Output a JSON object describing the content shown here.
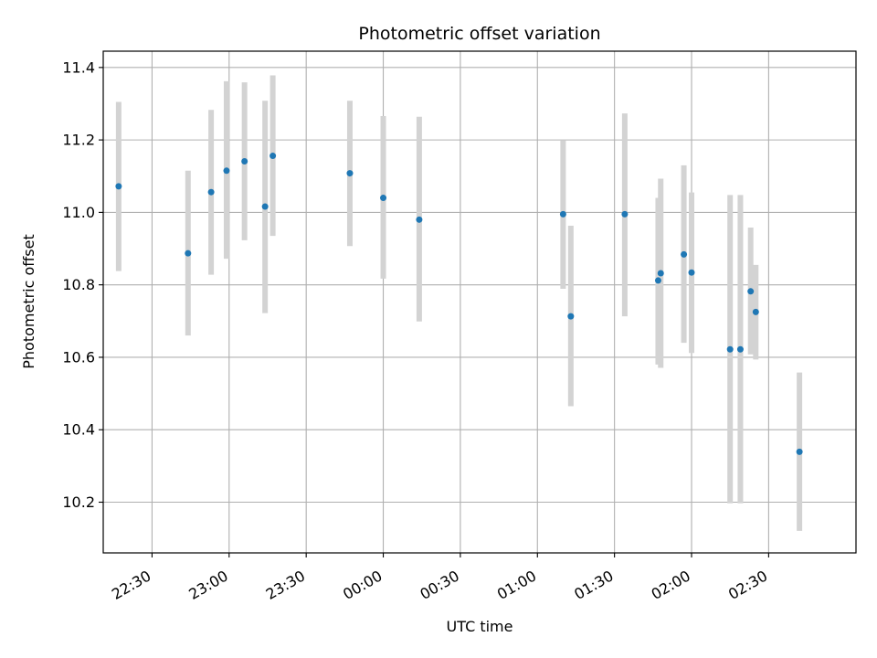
{
  "chart_data": {
    "type": "scatter",
    "title": "Photometric offset variation",
    "xlabel": "UTC time",
    "ylabel": "Photometric offset",
    "grid": true,
    "colors": {
      "point": "#1f77b4",
      "errorbar": "#d3d3d3",
      "grid": "#b0b0b0"
    },
    "xlim": [
      "22:11",
      "03:04"
    ],
    "ylim": [
      10.06,
      11.445
    ],
    "x_ticks": [
      "22:30",
      "23:00",
      "23:30",
      "00:00",
      "00:30",
      "01:00",
      "01:30",
      "02:00",
      "02:30"
    ],
    "y_ticks": [
      "10.2",
      "10.4",
      "10.6",
      "10.8",
      "11.0",
      "11.2",
      "11.4"
    ],
    "series": [
      {
        "points": [
          {
            "x": "22:17",
            "y": 11.072,
            "ylow": 10.838,
            "yhigh": 11.305
          },
          {
            "x": "22:44",
            "y": 10.887,
            "ylow": 10.66,
            "yhigh": 11.115
          },
          {
            "x": "22:53",
            "y": 11.056,
            "ylow": 10.828,
            "yhigh": 11.283
          },
          {
            "x": "22:59",
            "y": 11.115,
            "ylow": 10.872,
            "yhigh": 11.362
          },
          {
            "x": "23:06",
            "y": 11.141,
            "ylow": 10.923,
            "yhigh": 11.359
          },
          {
            "x": "23:14",
            "y": 11.016,
            "ylow": 10.722,
            "yhigh": 11.308
          },
          {
            "x": "23:17",
            "y": 11.156,
            "ylow": 10.935,
            "yhigh": 11.378
          },
          {
            "x": "23:47",
            "y": 11.108,
            "ylow": 10.907,
            "yhigh": 11.308
          },
          {
            "x": "00:00",
            "y": 11.04,
            "ylow": 10.817,
            "yhigh": 11.266
          },
          {
            "x": "00:14",
            "y": 10.98,
            "ylow": 10.699,
            "yhigh": 11.264
          },
          {
            "x": "01:10",
            "y": 10.995,
            "ylow": 10.789,
            "yhigh": 11.198
          },
          {
            "x": "01:13",
            "y": 10.713,
            "ylow": 10.465,
            "yhigh": 10.963
          },
          {
            "x": "01:34",
            "y": 10.995,
            "ylow": 10.713,
            "yhigh": 11.273
          },
          {
            "x": "01:47",
            "y": 10.812,
            "ylow": 10.58,
            "yhigh": 11.04
          },
          {
            "x": "01:48",
            "y": 10.832,
            "ylow": 10.571,
            "yhigh": 11.093
          },
          {
            "x": "01:57",
            "y": 10.884,
            "ylow": 10.64,
            "yhigh": 11.13
          },
          {
            "x": "02:00",
            "y": 10.834,
            "ylow": 10.612,
            "yhigh": 11.055
          },
          {
            "x": "02:15",
            "y": 10.622,
            "ylow": 10.197,
            "yhigh": 11.048
          },
          {
            "x": "02:19",
            "y": 10.622,
            "ylow": 10.197,
            "yhigh": 11.048
          },
          {
            "x": "02:23",
            "y": 10.782,
            "ylow": 10.608,
            "yhigh": 10.958
          },
          {
            "x": "02:25",
            "y": 10.725,
            "ylow": 10.594,
            "yhigh": 10.855
          },
          {
            "x": "02:42",
            "y": 10.339,
            "ylow": 10.121,
            "yhigh": 10.558
          }
        ]
      }
    ]
  }
}
